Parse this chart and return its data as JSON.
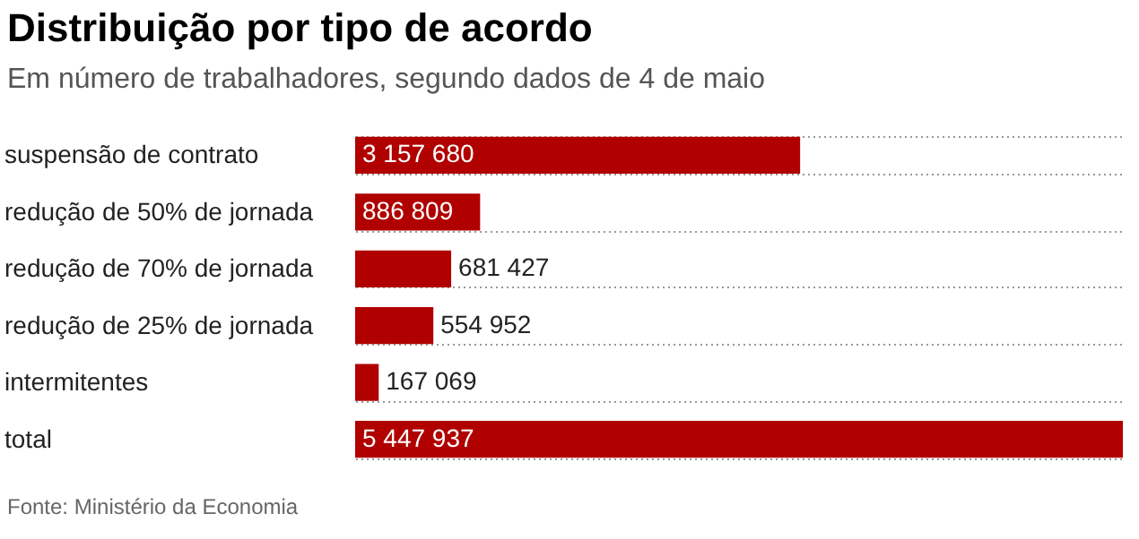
{
  "chart_data": {
    "type": "bar",
    "orientation": "horizontal",
    "title": "Distribuição por tipo de acordo",
    "subtitle": "Em número de trabalhadores, segundo dados de 4 de maio",
    "categories": [
      "suspensão de contrato",
      "redução de 50% de jornada",
      "redução de 70% de jornada",
      "redução de 25% de jornada",
      "intermitentes",
      "total"
    ],
    "values": [
      3157680,
      886809,
      681427,
      554952,
      167069,
      5447937
    ],
    "value_labels": [
      "3 157 680",
      "886 809",
      "681 427",
      "554 952",
      "167 069",
      "5 447 937"
    ],
    "color": "#b00000",
    "grid": "y",
    "annotations": [
      "Fonte: Ministério da Economia"
    ]
  }
}
